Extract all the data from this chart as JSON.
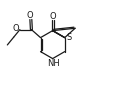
{
  "bg_color": "#ffffff",
  "line_color": "#1a1a1a",
  "lw": 0.9,
  "fs": 6.0,
  "xlim": [
    0,
    10
  ],
  "ylim": [
    0,
    8
  ],
  "figsize": [
    1.16,
    0.86
  ],
  "dpi": 100
}
